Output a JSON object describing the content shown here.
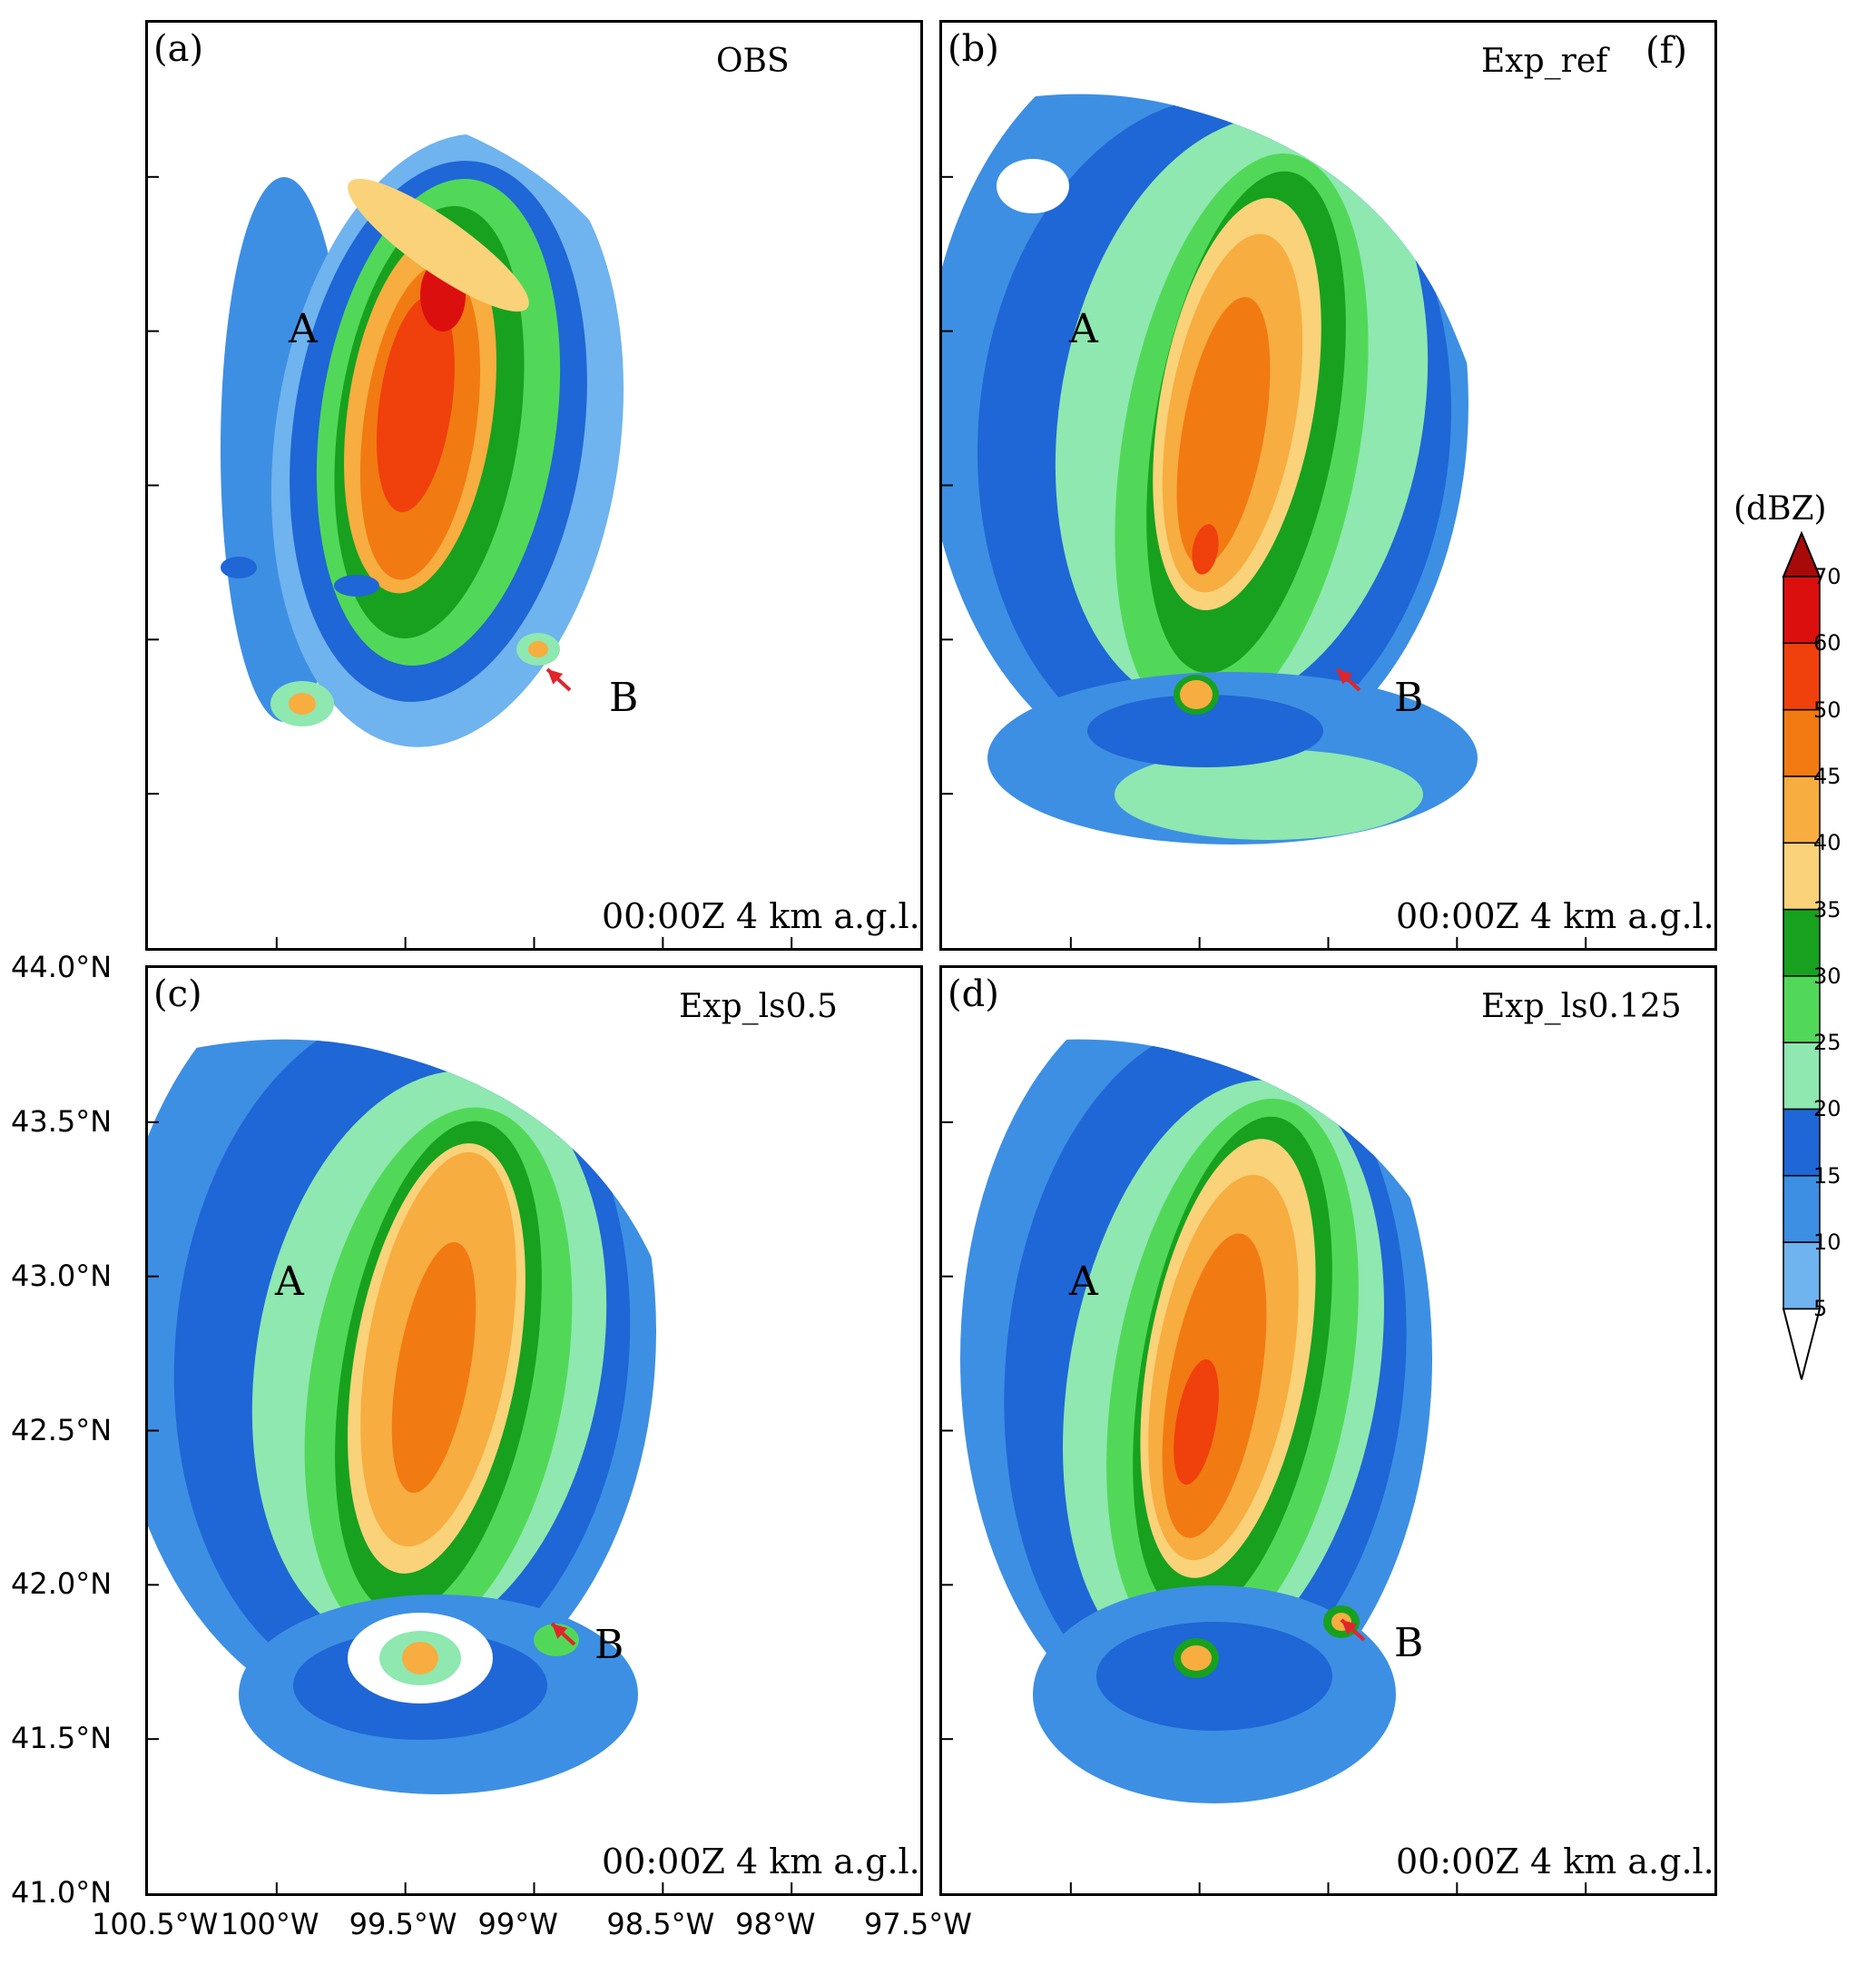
{
  "panels": [
    {
      "id": "a",
      "label": "(a)",
      "title": "OBS",
      "extra_label": "",
      "footer": "00:00Z  4 km a.g.l.",
      "point_a": "A",
      "point_b": "B"
    },
    {
      "id": "b",
      "label": "(b)",
      "title": "Exp_ref",
      "extra_label": "(f)",
      "footer": "00:00Z  4 km a.g.l.",
      "point_a": "A",
      "point_b": "B"
    },
    {
      "id": "c",
      "label": "(c)",
      "title": "Exp_ls0.5",
      "extra_label": "",
      "footer": "00:00Z  4 km a.g.l.",
      "point_a": "A",
      "point_b": "B"
    },
    {
      "id": "d",
      "label": "(d)",
      "title": "Exp_ls0.125",
      "extra_label": "",
      "footer": "00:00Z  4 km a.g.l.",
      "point_a": "A",
      "point_b": "B"
    }
  ],
  "chart_data": {
    "type": "heatmap",
    "description_fields": "radar reflectivity at 4 km a.g.l.",
    "x_ticks": [
      "100.5°W",
      "100°W",
      "99.5°W",
      "99°W",
      "98.5°W",
      "98°W",
      "97.5°W"
    ],
    "y_ticks": [
      "44.0°N",
      "43.5°N",
      "43.0°N",
      "42.5°N",
      "42.0°N",
      "41.5°N",
      "41.0°N"
    ],
    "xlim": [
      -100.5,
      -97.5
    ],
    "ylim": [
      41.0,
      44.0
    ],
    "colorbar": {
      "unit": "(dBZ)",
      "levels": [
        5,
        10,
        15,
        20,
        25,
        30,
        35,
        40,
        45,
        50,
        60,
        70
      ],
      "colors": [
        "#a6d4f2",
        "#6fb3ef",
        "#3d8fe3",
        "#1f66d6",
        "#8ee8b0",
        "#52d858",
        "#17a11f",
        "#f9d27a",
        "#f7ad3f",
        "#f27a12",
        "#f0400c",
        "#dc0f0f",
        "#a80a0a"
      ]
    }
  }
}
